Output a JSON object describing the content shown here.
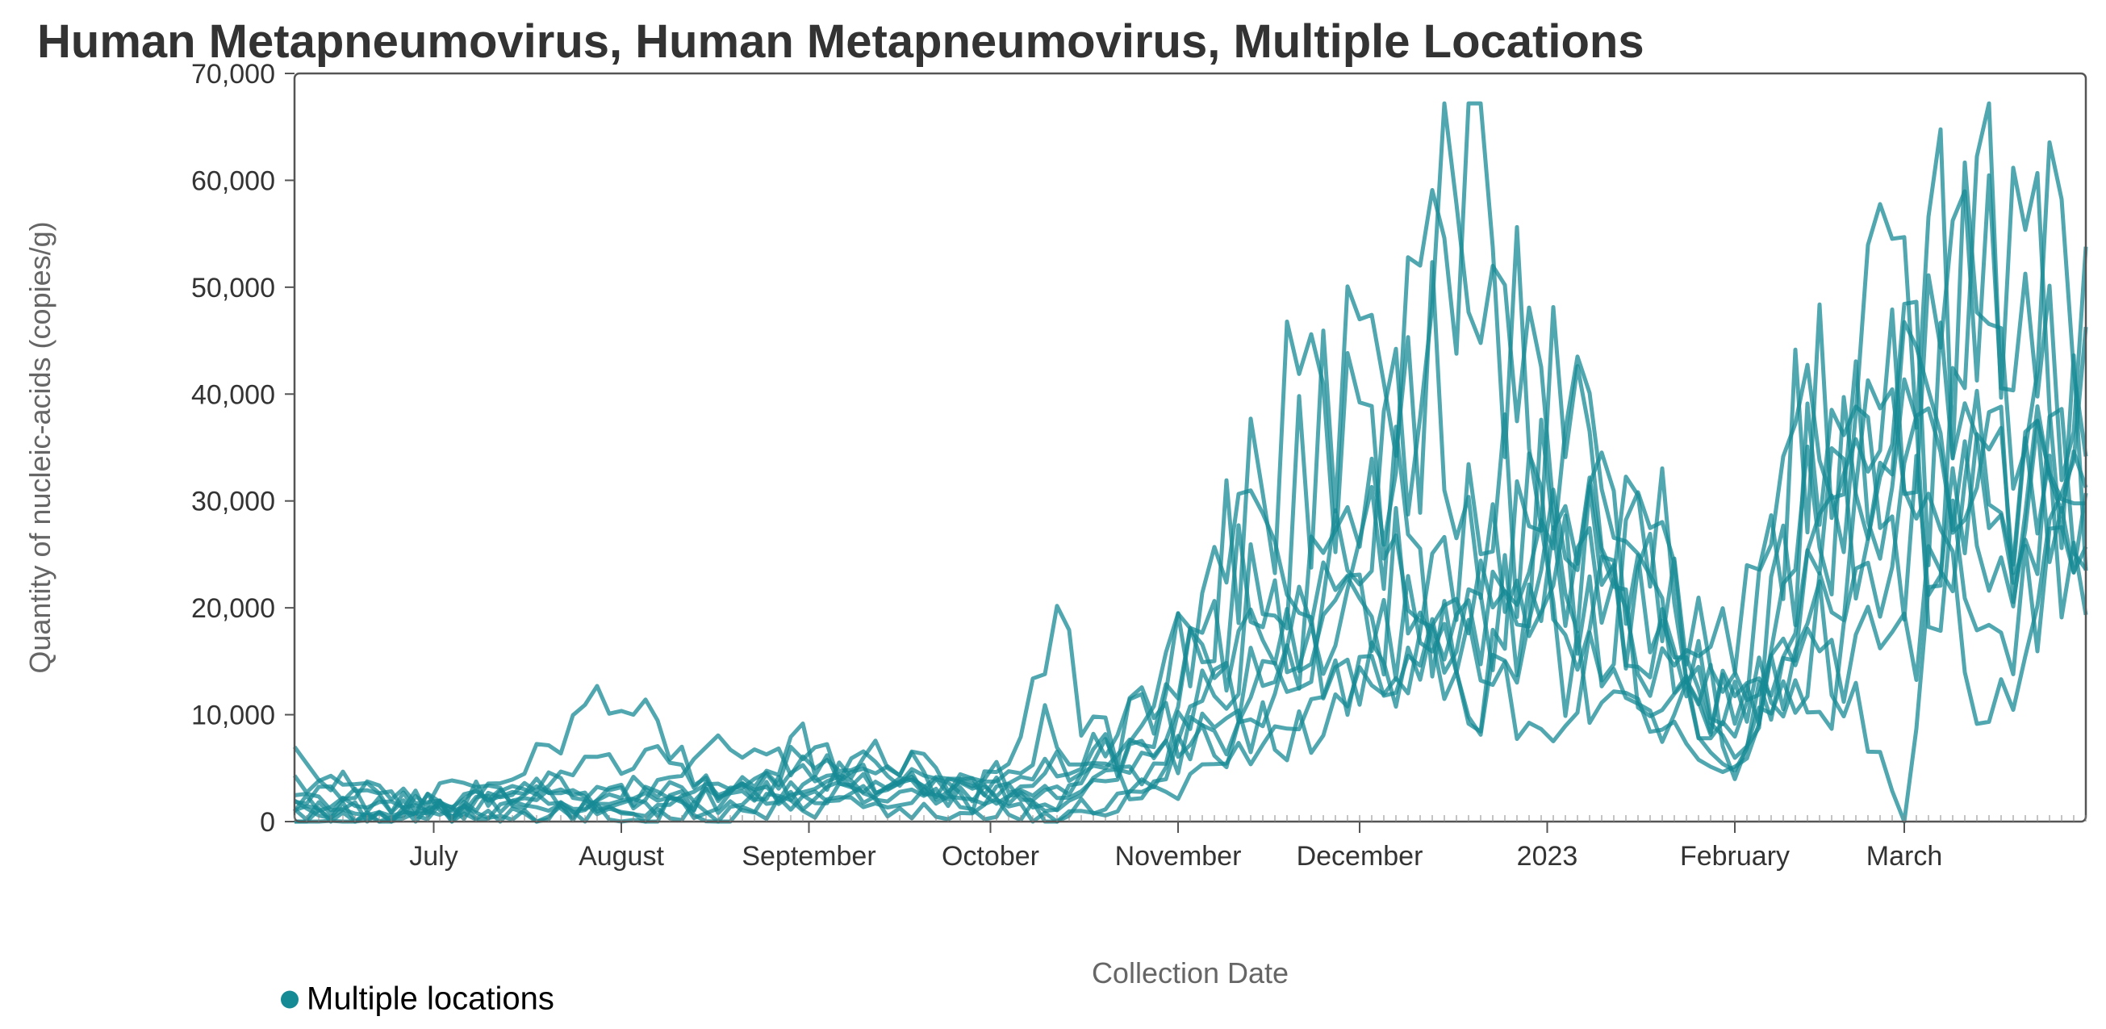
{
  "chart_data": {
    "type": "line",
    "title": "Human Metapneumovirus, Human Metapneumovirus, Multiple Locations",
    "xlabel": "Collection Date",
    "ylabel": "Quantity of nucleic-acids (copies/g)",
    "x_range": [
      "2022-06-08",
      "2023-03-31"
    ],
    "ylim": [
      0,
      70000
    ],
    "y_ticks": [
      0,
      10000,
      20000,
      30000,
      40000,
      50000,
      60000,
      70000
    ],
    "y_tick_labels": [
      "0",
      "10,000",
      "20,000",
      "30,000",
      "40,000",
      "50,000",
      "60,000",
      "70,000"
    ],
    "x_ticks": [
      {
        "date": "2022-07-01",
        "label": "July"
      },
      {
        "date": "2022-08-01",
        "label": "August"
      },
      {
        "date": "2022-09-01",
        "label": "September"
      },
      {
        "date": "2022-10-01",
        "label": "October"
      },
      {
        "date": "2022-11-01",
        "label": "November"
      },
      {
        "date": "2022-12-01",
        "label": "December"
      },
      {
        "date": "2023-01-01",
        "label": "2023"
      },
      {
        "date": "2023-02-01",
        "label": "February"
      },
      {
        "date": "2023-03-01",
        "label": "March"
      }
    ],
    "grid": false,
    "legend_position": "bottom-left",
    "legend": [
      {
        "label": "Multiple locations",
        "color": "#168a94"
      }
    ],
    "line_color": "#168a94",
    "sample_dates": [
      "2022-06-08",
      "2022-06-22",
      "2022-07-06",
      "2022-07-20",
      "2022-08-03",
      "2022-08-17",
      "2022-08-31",
      "2022-09-14",
      "2022-09-28",
      "2022-10-12",
      "2022-10-26",
      "2022-11-09",
      "2022-11-23",
      "2022-12-07",
      "2022-12-21",
      "2023-01-04",
      "2023-01-18",
      "2023-02-01",
      "2023-02-15",
      "2023-03-01",
      "2023-03-15",
      "2023-03-31"
    ],
    "series": [
      {
        "values": [
          6000,
          2000,
          1000,
          500,
          1500,
          2000,
          3000,
          4000,
          3000,
          2000,
          5000,
          9000,
          20000,
          35000,
          64000,
          15000,
          8000,
          5000,
          30000,
          40000,
          28000,
          33000
        ]
      },
      {
        "values": [
          3000,
          1500,
          800,
          7000,
          12000,
          2000,
          6000,
          5000,
          2000,
          15000,
          4000,
          15000,
          32000,
          48000,
          28000,
          22000,
          10000,
          12000,
          48000,
          31000,
          20000,
          23000
        ]
      },
      {
        "values": [
          1500,
          0,
          2500,
          3000,
          6500,
          3000,
          3000,
          7000,
          0,
          5000,
          7000,
          25000,
          41000,
          25000,
          18000,
          35000,
          19000,
          4000,
          25000,
          52000,
          44000,
          49000
        ]
      },
      {
        "values": [
          4000,
          2500,
          1200,
          3500,
          2000,
          6000,
          5000,
          4000,
          4000,
          9000,
          2000,
          13000,
          20000,
          38000,
          60000,
          25000,
          20000,
          15000,
          40000,
          35000,
          48000,
          42000
        ]
      },
      {
        "values": [
          1000,
          500,
          4000,
          1000,
          2500,
          0,
          2000,
          3000,
          2500,
          3000,
          7000,
          27000,
          15000,
          12000,
          24000,
          30000,
          12000,
          10000,
          20000,
          0,
          64000,
          30000
        ]
      },
      {
        "values": [
          0,
          1000,
          2000,
          2500,
          1000,
          1500,
          7000,
          2500,
          4000,
          1000,
          10000,
          6000,
          24000,
          20000,
          13000,
          10000,
          26000,
          8000,
          18000,
          44000,
          9000,
          37000
        ]
      },
      {
        "values": [
          2500,
          0,
          1500,
          2000,
          0,
          3000,
          2000,
          6000,
          3000,
          0,
          4000,
          10000,
          8000,
          14000,
          35000,
          20000,
          17000,
          12000,
          10000,
          30000,
          26000,
          32000
        ]
      },
      {
        "values": [
          500,
          3000,
          0,
          1500,
          500,
          1000,
          5000,
          1500,
          1000,
          6000,
          10000,
          18000,
          14000,
          22000,
          12000,
          41000,
          28000,
          5000,
          33000,
          25000,
          30000,
          28000
        ]
      },
      {
        "values": [
          2000,
          1000,
          500,
          0,
          3000,
          2000,
          1000,
          2000,
          2000,
          0,
          2000,
          5000,
          10000,
          15000,
          17000,
          23000,
          15000,
          18000,
          13000,
          18000,
          33000,
          25000
        ]
      },
      {
        "values": [
          0,
          0,
          2000,
          3000,
          1000,
          3000,
          2500,
          2500,
          5000,
          2000,
          6000,
          22000,
          16000,
          28000,
          10000,
          32000,
          22000,
          9000,
          25000,
          37000,
          30000,
          35000
        ]
      }
    ]
  }
}
